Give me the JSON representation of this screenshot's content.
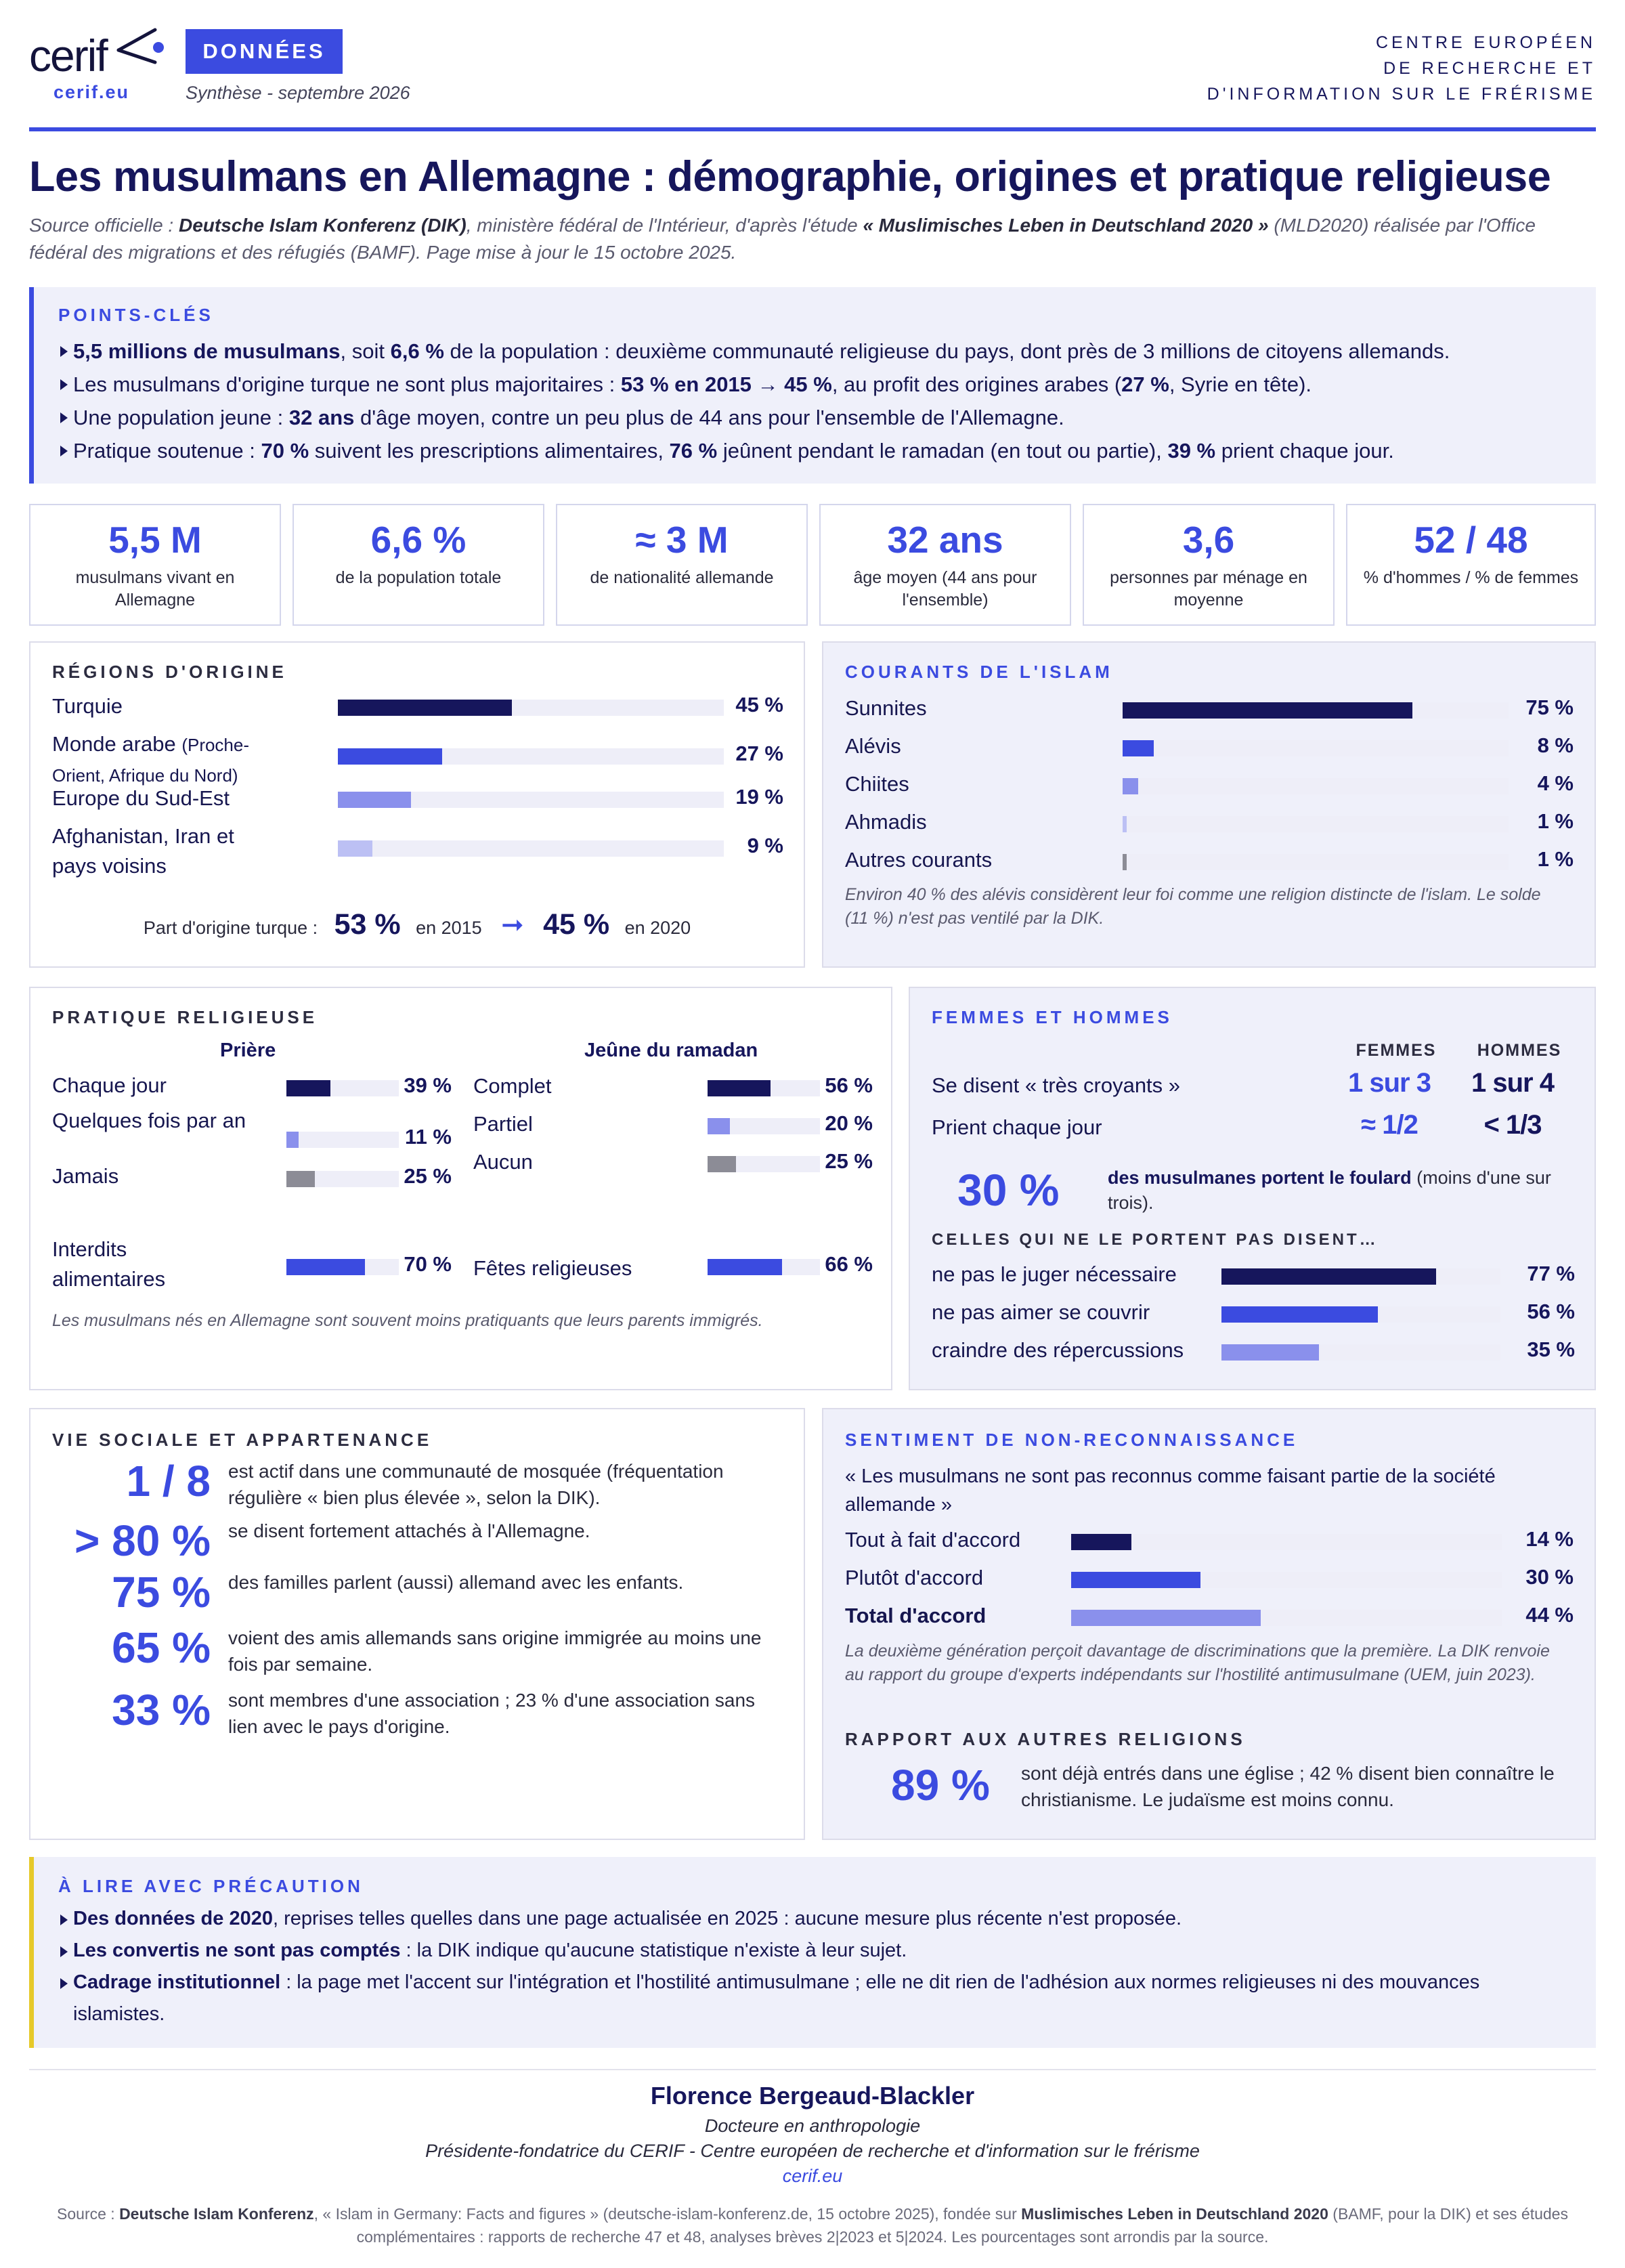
{
  "header": {
    "logo_text": "cerif",
    "logo_url": "cerif.eu",
    "badge": "DONNÉES",
    "synthese": "Synthèse - septembre 2026",
    "org_lines": [
      "CENTRE EUROPÉEN",
      "DE RECHERCHE ET",
      "D'INFORMATION SUR LE FRÉRISME"
    ]
  },
  "title": "Les musulmans en Allemagne : démographie, origines et pratique religieuse",
  "subtitle": {
    "p1": "Source officielle : ",
    "b1": "Deutsche Islam Konferenz (DIK)",
    "p2": ", ministère fédéral de l'Intérieur, d'après l'étude ",
    "b2": "« Muslimisches Leben in Deutschland 2020 »",
    "p3": " (MLD2020) réalisée par l'Office fédéral des migrations et des réfugiés (BAMF). Page mise à jour le 15 octobre 2025."
  },
  "key_points": {
    "title": "POINTS-CLÉS",
    "items": [
      {
        "segments": [
          {
            "b": "5,5 millions de musulmans"
          },
          {
            "t": ", soit "
          },
          {
            "b": "6,6 %"
          },
          {
            "t": " de la population : deuxième communauté religieuse du pays, dont près de 3 millions de citoyens allemands."
          }
        ]
      },
      {
        "segments": [
          {
            "t": "Les musulmans d'origine turque ne sont plus majoritaires : "
          },
          {
            "b": "53 % en 2015 → 45 %"
          },
          {
            "t": ", au profit des origines arabes ("
          },
          {
            "b": "27 %"
          },
          {
            "t": ", Syrie en tête)."
          }
        ]
      },
      {
        "segments": [
          {
            "t": "Une population jeune : "
          },
          {
            "b": "32 ans"
          },
          {
            "t": " d'âge moyen, contre un peu plus de 44 ans pour l'ensemble de l'Allemagne."
          }
        ]
      },
      {
        "segments": [
          {
            "t": "Pratique soutenue : "
          },
          {
            "b": "70 %"
          },
          {
            "t": " suivent les prescriptions alimentaires, "
          },
          {
            "b": "76 %"
          },
          {
            "t": " jeûnent pendant le ramadan (en tout ou partie), "
          },
          {
            "b": "39 %"
          },
          {
            "t": " prient chaque jour."
          }
        ]
      }
    ]
  },
  "stats": [
    {
      "value": "5,5 M",
      "label": "musulmans vivant en Allemagne"
    },
    {
      "value": "6,6 %",
      "label": "de la population totale"
    },
    {
      "value": "≈ 3 M",
      "label": "de nationalité allemande"
    },
    {
      "value": "32 ans",
      "label": "âge moyen (44 ans pour l'ensemble)"
    },
    {
      "value": "3,6",
      "label": "personnes par ménage en moyenne"
    },
    {
      "value": "52 / 48",
      "label": "% d'hommes / % de femmes"
    }
  ],
  "regions": {
    "title": "RÉGIONS D'ORIGINE",
    "items": [
      {
        "label": "Turquie",
        "sub": "",
        "value": 45,
        "text": "45 %",
        "color": "#16165c"
      },
      {
        "label": "Monde arabe",
        "sub": "(Proche-Orient, Afrique du Nord)",
        "value": 27,
        "text": "27 %",
        "color": "#3b4be0"
      },
      {
        "label": "Europe du Sud-Est",
        "sub": "",
        "value": 19,
        "text": "19 %",
        "color": "#8a90ec"
      },
      {
        "label": "Afghanistan, Iran et pays voisins",
        "sub": "",
        "value": 9,
        "text": "9 %",
        "color": "#bcc0f4"
      }
    ],
    "turkish_label": "Part d'origine turque :",
    "from_value": "53 %",
    "from_year": "en 2015",
    "to_value": "45 %",
    "to_year": "en 2020"
  },
  "currents": {
    "title": "COURANTS DE L'ISLAM",
    "items": [
      {
        "label": "Sunnites",
        "value": 75,
        "text": "75 %",
        "color": "#16165c"
      },
      {
        "label": "Alévis",
        "value": 8,
        "text": "8 %",
        "color": "#3b4be0"
      },
      {
        "label": "Chiites",
        "value": 4,
        "text": "4 %",
        "color": "#8a90ec"
      },
      {
        "label": "Ahmadis",
        "value": 1,
        "text": "1 %",
        "color": "#bcc0f4"
      },
      {
        "label": "Autres courants",
        "value": 1,
        "text": "1 %",
        "color": "#8c8c96"
      }
    ],
    "note": "Environ 40 % des alévis considèrent leur foi comme une religion distincte de l'islam. Le solde (11 %) n'est pas ventilé par la DIK."
  },
  "practice": {
    "title": "PRATIQUE RELIGIEUSE",
    "prayer_title": "Prière",
    "fast_title": "Jeûne du ramadan",
    "prayer": [
      {
        "label": "Chaque jour",
        "value": 39,
        "text": "39 %",
        "color": "#16165c"
      },
      {
        "label": "Quelques fois par an",
        "value": 11,
        "text": "11 %",
        "color": "#8a90ec"
      },
      {
        "label": "Jamais",
        "value": 25,
        "text": "25 %",
        "color": "#8c8c96"
      }
    ],
    "fast": [
      {
        "label": "Complet",
        "value": 56,
        "text": "56 %",
        "color": "#16165c"
      },
      {
        "label": "Partiel",
        "value": 20,
        "text": "20 %",
        "color": "#8a90ec"
      },
      {
        "label": "Aucun",
        "value": 25,
        "text": "25 %",
        "color": "#8c8c96"
      }
    ],
    "food": {
      "label": "Interdits alimentaires",
      "value": 70,
      "text": "70 %",
      "color": "#3b4be0"
    },
    "feasts": {
      "label": "Fêtes religieuses",
      "value": 66,
      "text": "66 %",
      "color": "#3b4be0"
    },
    "note": "Les musulmans nés en Allemagne sont souvent moins pratiquants que leurs parents immigrés."
  },
  "gender": {
    "title": "FEMMES ET HOMMES",
    "col_women": "FEMMES",
    "col_men": "HOMMES",
    "rows": [
      {
        "label": "Se disent « très croyants »",
        "women": "1 sur 3",
        "men": "1 sur 4"
      },
      {
        "label": "Prient chaque jour",
        "women": "≈ 1/2",
        "men": "< 1/3"
      }
    ],
    "headscarf_value": "30 %",
    "headscarf_bold": "des musulmanes portent le foulard",
    "headscarf_rest": " (moins d'une sur trois).",
    "reasons_title": "CELLES QUI NE LE PORTENT PAS DISENT…",
    "reasons": [
      {
        "label": "ne pas le juger nécessaire",
        "value": 77,
        "text": "77 %",
        "color": "#16165c"
      },
      {
        "label": "ne pas aimer se couvrir",
        "value": 56,
        "text": "56 %",
        "color": "#3b4be0"
      },
      {
        "label": "craindre des répercussions",
        "value": 35,
        "text": "35 %",
        "color": "#8a90ec"
      }
    ]
  },
  "social": {
    "title": "VIE SOCIALE ET APPARTENANCE",
    "items": [
      {
        "value": "1 / 8",
        "text": "est actif dans une communauté de mosquée (fréquentation régulière « bien plus élevée », selon la DIK)."
      },
      {
        "value": "> 80 %",
        "text": "se disent fortement attachés à l'Allemagne."
      },
      {
        "value": "75 %",
        "text": "des familles parlent (aussi) allemand avec les enfants."
      },
      {
        "value": "65 %",
        "text": "voient des amis allemands sans origine immigrée au moins une fois par semaine."
      },
      {
        "value": "33 %",
        "text": "sont membres d'une association ; 23 % d'une association sans lien avec le pays d'origine."
      }
    ]
  },
  "recognition": {
    "title": "SENTIMENT DE NON-RECONNAISSANCE",
    "quote": "« Les musulmans ne sont pas reconnus comme faisant partie de la société allemande »",
    "items": [
      {
        "label": "Tout à fait d'accord",
        "value": 14,
        "text": "14 %",
        "color": "#16165c",
        "bold": false
      },
      {
        "label": "Plutôt d'accord",
        "value": 30,
        "text": "30 %",
        "color": "#3b4be0",
        "bold": false
      },
      {
        "label": "Total d'accord",
        "value": 44,
        "text": "44 %",
        "color": "#8a90ec",
        "bold": true
      }
    ],
    "note": "La deuxième génération perçoit davantage de discriminations que la première. La DIK renvoie au rapport du groupe d'experts indépendants sur l'hostilité antimusulmane (UEM, juin 2023).",
    "other_title": "RAPPORT AUX AUTRES RELIGIONS",
    "other_value": "89 %",
    "other_text": "sont déjà entrés dans une église ; 42 % disent bien connaître le christianisme. Le judaïsme est moins connu."
  },
  "caution": {
    "title": "À LIRE AVEC PRÉCAUTION",
    "items": [
      {
        "b": "Des données de 2020",
        "t": ", reprises telles quelles dans une page actualisée en 2025 : aucune mesure plus récente n'est proposée."
      },
      {
        "b": "Les convertis ne sont pas comptés",
        "t": " : la DIK indique qu'aucune statistique n'existe à leur sujet."
      },
      {
        "b": "Cadrage institutionnel",
        "t": " : la page met l'accent sur l'intégration et l'hostilité antimusulmane ; elle ne dit rien de l'adhésion aux normes religieuses ni des mouvances islamistes."
      }
    ],
    "accent": "#e6c92a"
  },
  "footer": {
    "author": "Florence Bergeaud-Blackler",
    "role": "Docteure en anthropologie",
    "position": "Présidente-fondatrice du CERIF - Centre européen de recherche et d'information sur le frérisme",
    "url": "cerif.eu",
    "source": {
      "p1": "Source : ",
      "b1": "Deutsche Islam Konferenz",
      "p2": ", « Islam in Germany: Facts and figures » (deutsche-islam-konferenz.de, 15 octobre 2025), fondée sur ",
      "b2": "Muslimisches Leben in Deutschland 2020",
      "p3": " (BAMF, pour la DIK) et ses études complémentaires : rapports de recherche 47 et 48, analyses brèves 2|2023 et 5|2024. Les pourcentages sont arrondis par la source."
    }
  }
}
